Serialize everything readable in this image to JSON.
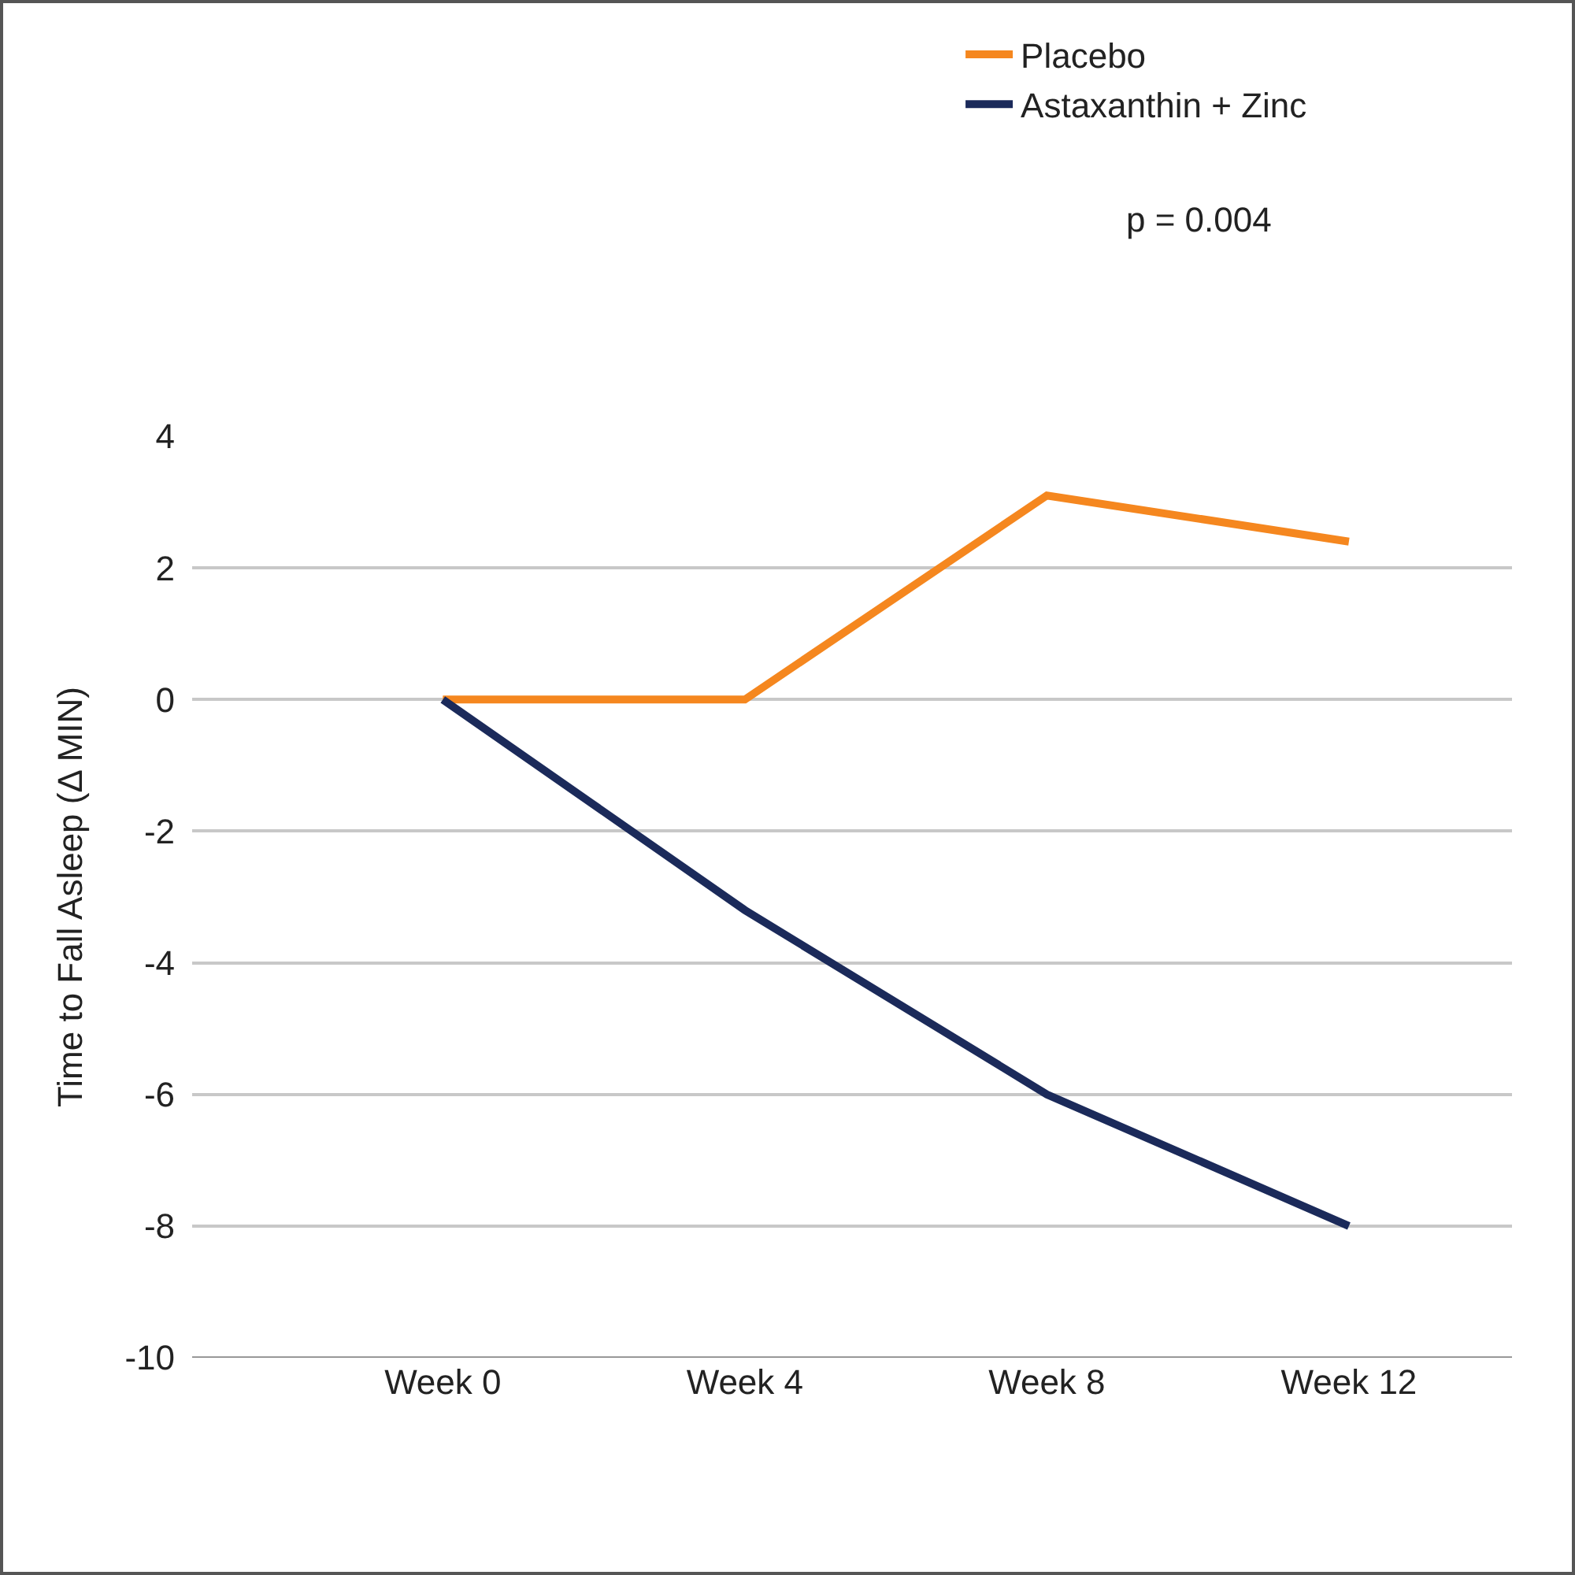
{
  "chart_data": {
    "type": "line",
    "ylabel": "Time to Fall Asleep (Δ MIN)",
    "categories": [
      "Week 0",
      "Week 4",
      "Week 8",
      "Week 12"
    ],
    "series": [
      {
        "name": "Placebo",
        "color": "#f5871f",
        "values": [
          0,
          0,
          3.1,
          2.4
        ]
      },
      {
        "name": "Astaxanthin + Zinc",
        "color": "#1b2a5a",
        "values": [
          0,
          -3.2,
          -6.0,
          -8.0
        ]
      }
    ],
    "ylim": [
      -10,
      4
    ],
    "yticks": [
      -10,
      -8,
      -6,
      -4,
      -2,
      0,
      2,
      4
    ],
    "grid": "y",
    "legend": "top right",
    "marker": "none",
    "line_style": "solid",
    "annotations": [
      "p = 0.004"
    ]
  }
}
